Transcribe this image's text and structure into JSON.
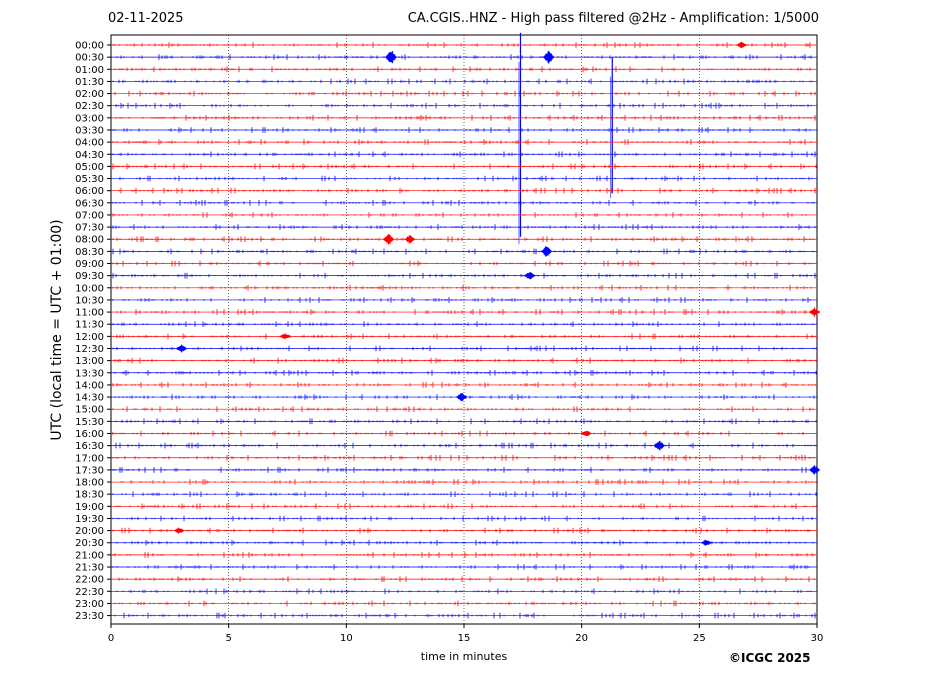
{
  "header": {
    "date": "02-11-2025",
    "title": "CA.CGIS..HNZ - High pass filtered @2Hz - Amplification: 1/5000"
  },
  "footer": {
    "copyright": "©ICGC 2025"
  },
  "chart_data": {
    "type": "line",
    "title": "CA.CGIS..HNZ - High pass filtered @2Hz - Amplification: 1/5000",
    "xlabel": "time in minutes",
    "ylabel": "UTC (local time = UTC + 01:00)",
    "xlim": [
      0,
      30
    ],
    "x_ticks": [
      0,
      5,
      10,
      15,
      20,
      25,
      30
    ],
    "vertical_grid": "dotted at x ticks",
    "row_labels": [
      "00:00",
      "00:30",
      "01:00",
      "01:30",
      "02:00",
      "02:30",
      "03:00",
      "03:30",
      "04:00",
      "04:30",
      "05:00",
      "05:30",
      "06:00",
      "06:30",
      "07:00",
      "07:30",
      "08:00",
      "08:30",
      "09:00",
      "09:30",
      "10:00",
      "10:30",
      "11:00",
      "11:30",
      "12:00",
      "12:30",
      "13:00",
      "13:30",
      "14:00",
      "14:30",
      "15:00",
      "15:30",
      "16:00",
      "16:30",
      "17:00",
      "17:30",
      "18:00",
      "18:30",
      "19:00",
      "19:30",
      "20:00",
      "20:30",
      "21:00",
      "21:30",
      "22:00",
      "22:30",
      "23:00",
      "23:30"
    ],
    "trace_colors": [
      "#ff0000",
      "#0000ff"
    ],
    "events": [
      {
        "row": "00:30",
        "minute": 11.9,
        "amplitude": 0.7
      },
      {
        "row": "00:30",
        "minute": 18.6,
        "amplitude": 0.6
      },
      {
        "row": "00:00",
        "minute": 26.8,
        "amplitude": 0.3
      },
      {
        "row": "02:30",
        "minute": 17.4,
        "amplitude": 6.0,
        "type": "spike"
      },
      {
        "row": "02:30",
        "minute": 21.3,
        "amplitude": 4.0,
        "type": "spike"
      },
      {
        "row": "08:00",
        "minute": 11.8,
        "amplitude": 0.5
      },
      {
        "row": "08:00",
        "minute": 12.7,
        "amplitude": 0.4
      },
      {
        "row": "08:30",
        "minute": 18.5,
        "amplitude": 0.5
      },
      {
        "row": "09:30",
        "minute": 17.8,
        "amplitude": 0.4
      },
      {
        "row": "11:00",
        "minute": 29.9,
        "amplitude": 0.4
      },
      {
        "row": "12:00",
        "minute": 7.4,
        "amplitude": 0.3
      },
      {
        "row": "12:30",
        "minute": 3.0,
        "amplitude": 0.4
      },
      {
        "row": "14:30",
        "minute": 14.9,
        "amplitude": 0.4
      },
      {
        "row": "16:00",
        "minute": 20.2,
        "amplitude": 0.3
      },
      {
        "row": "16:30",
        "minute": 23.3,
        "amplitude": 0.5
      },
      {
        "row": "17:30",
        "minute": 29.9,
        "amplitude": 0.4
      },
      {
        "row": "20:00",
        "minute": 2.9,
        "amplitude": 0.3
      },
      {
        "row": "20:30",
        "minute": 25.3,
        "amplitude": 0.3
      }
    ]
  }
}
